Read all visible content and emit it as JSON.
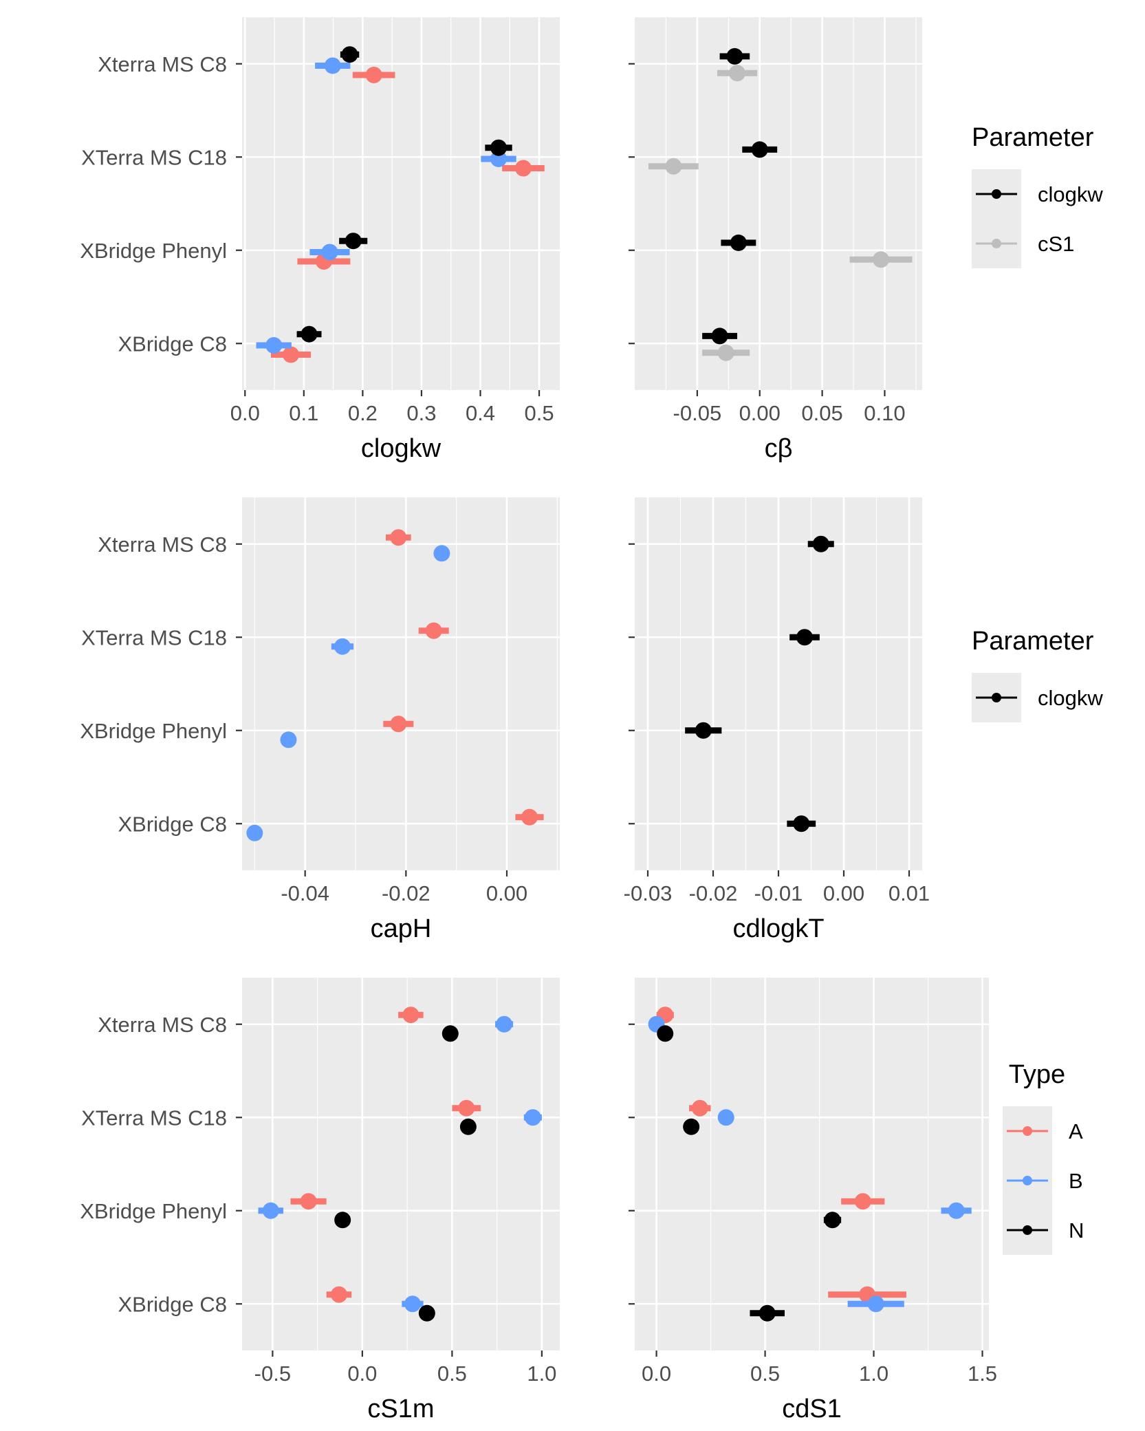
{
  "chart_data": [
    {
      "type": "scatter",
      "panel": "clogkw",
      "xlabel": "clogkw",
      "xlim": [
        -0.005,
        0.535
      ],
      "xticks": [
        0.0,
        0.1,
        0.2,
        0.3,
        0.4,
        0.5
      ],
      "xtick_labels": [
        "0.0",
        "0.1",
        "0.2",
        "0.3",
        "0.4",
        "0.5"
      ],
      "categories": [
        "Xterra MS C8",
        "XTerra MS C18",
        "XBridge Phenyl",
        "XBridge C8"
      ],
      "series": [
        {
          "name": "A",
          "color": "#F8766D",
          "values": [
            0.219,
            0.473,
            0.134,
            0.078
          ],
          "err": [
            0.036,
            0.036,
            0.045,
            0.034
          ],
          "offset": 0.12
        },
        {
          "name": "B",
          "color": "#619CFF",
          "values": [
            0.149,
            0.431,
            0.144,
            0.049
          ],
          "err": [
            0.03,
            0.03,
            0.034,
            0.03
          ],
          "offset": 0.02
        },
        {
          "name": "N",
          "color": "#000000",
          "values": [
            0.178,
            0.431,
            0.184,
            0.109
          ],
          "err": [
            0.016,
            0.023,
            0.024,
            0.021
          ],
          "offset": -0.1
        }
      ]
    },
    {
      "type": "scatter",
      "panel": "cbeta",
      "xlabel": "cβ",
      "xlim": [
        -0.1,
        0.13
      ],
      "xticks": [
        -0.05,
        0.0,
        0.05,
        0.1
      ],
      "xtick_labels": [
        "-0.05",
        "0.00",
        "0.05",
        "0.10"
      ],
      "categories": [
        "Xterra MS C8",
        "XTerra MS C18",
        "XBridge Phenyl",
        "XBridge C8"
      ],
      "legend": {
        "title": "Parameter",
        "entries": [
          "clogkw",
          "cS1"
        ],
        "colors": [
          "#000000",
          "#BEBEBE"
        ]
      },
      "series": [
        {
          "name": "cS1",
          "color": "#BEBEBE",
          "values": [
            -0.018,
            -0.069,
            0.097,
            -0.027
          ],
          "err": [
            0.016,
            0.02,
            0.025,
            0.019
          ],
          "offset": 0.1
        },
        {
          "name": "clogkw",
          "color": "#000000",
          "values": [
            -0.02,
            0.0,
            -0.017,
            -0.032
          ],
          "err": [
            0.012,
            0.014,
            0.014,
            0.014
          ],
          "offset": -0.08
        }
      ]
    },
    {
      "type": "scatter",
      "panel": "capH",
      "xlabel": "capH",
      "xlim": [
        -0.0525,
        0.0105
      ],
      "xticks": [
        -0.04,
        -0.02,
        0.0
      ],
      "xtick_labels": [
        "-0.04",
        "-0.02",
        "0.00"
      ],
      "categories": [
        "Xterra MS C8",
        "XTerra MS C18",
        "XBridge Phenyl",
        "XBridge C8"
      ],
      "series": [
        {
          "name": "A",
          "color": "#F8766D",
          "values": [
            -0.0215,
            -0.0145,
            -0.0215,
            0.0045
          ],
          "err": [
            0.0025,
            0.003,
            0.003,
            0.0028
          ],
          "offset": -0.07
        },
        {
          "name": "B",
          "color": "#619CFF",
          "values": [
            -0.0129,
            -0.0326,
            -0.0433,
            -0.05
          ],
          "err": [
            0.0012,
            0.0022,
            0.0012,
            0.0012
          ],
          "offset": 0.1
        }
      ]
    },
    {
      "type": "scatter",
      "panel": "cdlogkT",
      "xlabel": "cdlogkT",
      "xlim": [
        -0.032,
        0.012
      ],
      "xticks": [
        -0.03,
        -0.02,
        -0.01,
        0.0,
        0.01
      ],
      "xtick_labels": [
        "-0.03",
        "-0.02",
        "-0.01",
        "0.00",
        "0.01"
      ],
      "categories": [
        "Xterra MS C8",
        "XTerra MS C18",
        "XBridge Phenyl",
        "XBridge C8"
      ],
      "legend": {
        "title": "Parameter",
        "entries": [
          "clogkw"
        ],
        "colors": [
          "#000000"
        ]
      },
      "series": [
        {
          "name": "clogkw",
          "color": "#000000",
          "values": [
            -0.0035,
            -0.006,
            -0.0215,
            -0.0065
          ],
          "err": [
            0.002,
            0.0023,
            0.0028,
            0.0022
          ],
          "offset": 0.0
        }
      ]
    },
    {
      "type": "scatter",
      "panel": "cS1m",
      "xlabel": "cS1m",
      "xlim": [
        -0.67,
        1.1
      ],
      "xticks": [
        -0.5,
        0.0,
        0.5,
        1.0
      ],
      "xtick_labels": [
        "-0.5",
        "0.0",
        "0.5",
        "1.0"
      ],
      "categories": [
        "Xterra MS C8",
        "XTerra MS C18",
        "XBridge Phenyl",
        "XBridge C8"
      ],
      "series": [
        {
          "name": "A",
          "color": "#F8766D",
          "values": [
            0.27,
            0.58,
            -0.3,
            -0.13
          ],
          "err": [
            0.07,
            0.08,
            0.1,
            0.07
          ],
          "offset": -0.1
        },
        {
          "name": "B",
          "color": "#619CFF",
          "values": [
            0.79,
            0.95,
            -0.51,
            0.28
          ],
          "err": [
            0.05,
            0.05,
            0.07,
            0.06
          ],
          "offset": 0.0
        },
        {
          "name": "N",
          "color": "#000000",
          "values": [
            0.49,
            0.59,
            -0.11,
            0.36
          ],
          "err": [
            0.02,
            0.02,
            0.02,
            0.02
          ],
          "offset": 0.1
        }
      ]
    },
    {
      "type": "scatter",
      "panel": "cdS1",
      "xlabel": "cdS1",
      "xlim": [
        -0.1,
        1.53
      ],
      "xticks": [
        0.0,
        0.5,
        1.0,
        1.5
      ],
      "xtick_labels": [
        "0.0",
        "0.5",
        "1.0",
        "1.5"
      ],
      "categories": [
        "Xterra MS C8",
        "XTerra MS C18",
        "XBridge Phenyl",
        "XBridge C8"
      ],
      "legend": {
        "title": "Type",
        "entries": [
          "A",
          "B",
          "N"
        ],
        "colors": [
          "#F8766D",
          "#619CFF",
          "#000000"
        ]
      },
      "series": [
        {
          "name": "A",
          "color": "#F8766D",
          "values": [
            0.04,
            0.2,
            0.95,
            0.97
          ],
          "err": [
            0.04,
            0.05,
            0.1,
            0.18
          ],
          "offset": -0.1
        },
        {
          "name": "B",
          "color": "#619CFF",
          "values": [
            0.0,
            0.32,
            1.38,
            1.01
          ],
          "err": [
            0.03,
            0.03,
            0.07,
            0.13
          ],
          "offset": 0.0
        },
        {
          "name": "N",
          "color": "#000000",
          "values": [
            0.04,
            0.16,
            0.81,
            0.51
          ],
          "err": [
            0.02,
            0.02,
            0.04,
            0.08
          ],
          "offset": 0.1
        }
      ]
    }
  ]
}
